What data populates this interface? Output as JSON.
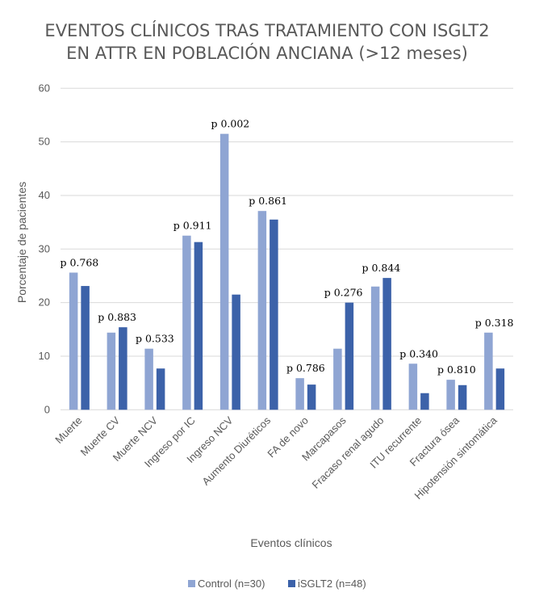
{
  "chart_data": {
    "type": "bar",
    "title": [
      "EVENTOS CLÍNICOS TRAS TRATAMIENTO CON ISGLT2",
      "EN ATTR EN POBLACIÓN ANCIANA (>12 meses)"
    ],
    "xlabel": "Eventos clínicos",
    "ylabel": "Porcentaje de pacientes",
    "ylim": [
      0,
      60
    ],
    "yticks": [
      0,
      10,
      20,
      30,
      40,
      50,
      60
    ],
    "grid": true,
    "legend_position": "bottom",
    "categories": [
      "Muerte",
      "Muerte CV",
      "Muerte NCV",
      "Ingreso por IC",
      "Ingreso NCV",
      "Aumento Diuréticos",
      "FA de novo",
      "Marcapasos",
      "Fracaso renal agudo",
      "ITU recurrente",
      "Fractura ósea",
      "Hipotensión sintomática"
    ],
    "series": [
      {
        "name": "Control (n=30)",
        "color": "#8FA5D3",
        "values": [
          25.6,
          14.4,
          11.4,
          32.5,
          51.5,
          37.1,
          5.9,
          11.4,
          23.0,
          8.6,
          5.6,
          14.4
        ]
      },
      {
        "name": "iSGLT2 (n=48)",
        "color": "#3C62A9",
        "values": [
          23.1,
          15.4,
          7.7,
          31.3,
          21.5,
          35.5,
          4.7,
          20.0,
          24.6,
          3.1,
          4.6,
          7.7
        ]
      }
    ],
    "annotations": [
      "p 0.768",
      "p 0.883",
      "p 0.533",
      "p 0.911",
      "p 0.002",
      "p 0.861",
      "p 0.786",
      "p 0.276",
      "p 0.844",
      "p 0.340",
      "p 0.810",
      "p 0.318"
    ]
  }
}
